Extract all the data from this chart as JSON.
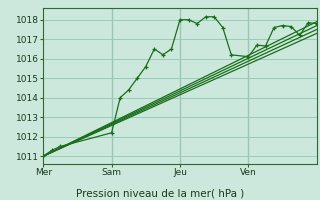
{
  "background_color": "#cce8dc",
  "grid_color": "#99ccbb",
  "line_color": "#1a6e1a",
  "spine_color": "#336633",
  "title": "Pression niveau de la mer( hPa )",
  "ylabel_ticks": [
    1011,
    1012,
    1013,
    1014,
    1015,
    1016,
    1017,
    1018
  ],
  "ylim": [
    1010.6,
    1018.6
  ],
  "xlim": [
    0,
    96
  ],
  "day_labels": [
    "Mer",
    "Sam",
    "Jeu",
    "Ven"
  ],
  "day_positions": [
    0,
    24,
    48,
    72
  ],
  "line1_x": [
    0,
    3,
    6,
    24,
    27,
    30,
    33,
    36,
    39,
    42,
    45,
    48,
    51,
    54,
    57,
    60,
    63,
    66,
    72,
    75,
    78,
    81,
    84,
    87,
    90,
    93,
    96
  ],
  "line1_y": [
    1011.0,
    1011.3,
    1011.5,
    1012.2,
    1014.0,
    1014.4,
    1015.0,
    1015.6,
    1016.5,
    1016.2,
    1016.5,
    1018.0,
    1018.0,
    1017.8,
    1018.15,
    1018.15,
    1017.6,
    1016.2,
    1016.1,
    1016.7,
    1016.65,
    1017.6,
    1017.7,
    1017.65,
    1017.2,
    1017.85,
    1017.8
  ],
  "line2_x": [
    0,
    96
  ],
  "line2_y": [
    1011.0,
    1017.9
  ],
  "line3_x": [
    0,
    96
  ],
  "line3_y": [
    1011.0,
    1017.7
  ],
  "line4_x": [
    0,
    96
  ],
  "line4_y": [
    1011.0,
    1017.5
  ],
  "line5_x": [
    0,
    96
  ],
  "line5_y": [
    1011.0,
    1017.3
  ]
}
